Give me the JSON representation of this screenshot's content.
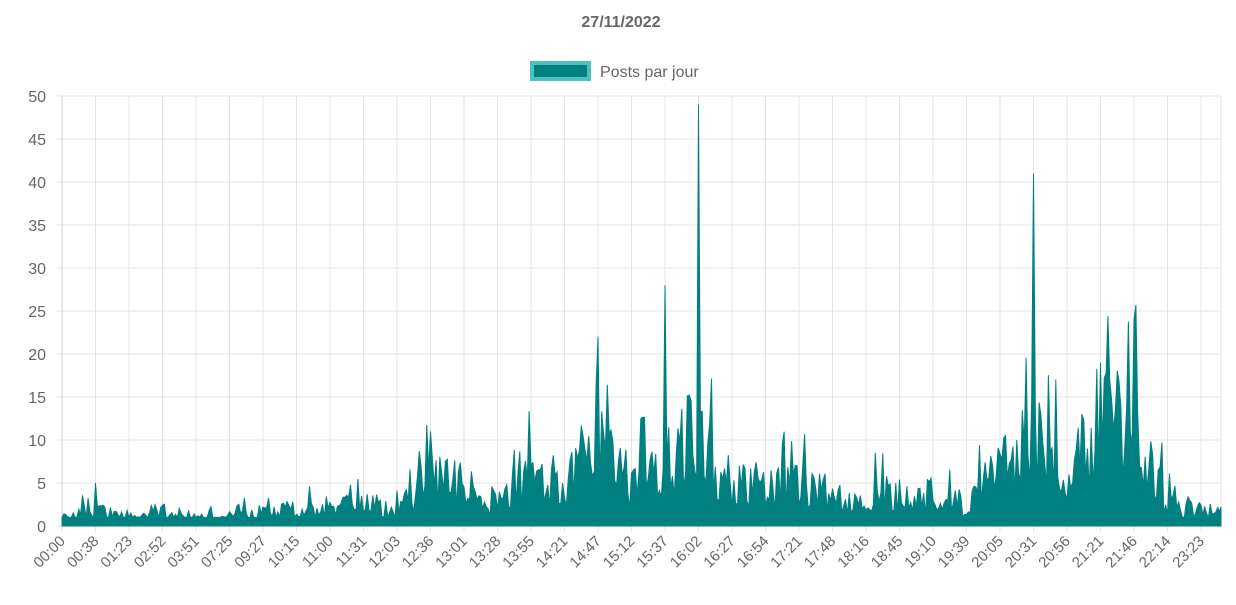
{
  "chart_data": {
    "type": "area",
    "title": "27/11/2022",
    "xlabel": "",
    "ylabel": "",
    "ylim": [
      0,
      50
    ],
    "y_ticks": [
      0,
      5,
      10,
      15,
      20,
      25,
      30,
      35,
      40,
      45,
      50
    ],
    "grid": true,
    "legend_position": "top",
    "x_tick_labels": [
      "00:00",
      "00:38",
      "01:23",
      "02:52",
      "03:51",
      "07:25",
      "09:27",
      "10:15",
      "11:00",
      "11:31",
      "12:03",
      "12:36",
      "13:01",
      "13:28",
      "13:55",
      "14:21",
      "14:47",
      "15:12",
      "15:37",
      "16:02",
      "16:27",
      "16:54",
      "17:21",
      "17:48",
      "18:16",
      "18:45",
      "19:10",
      "19:39",
      "20:05",
      "20:31",
      "20:56",
      "21:21",
      "21:46",
      "22:14",
      "23:23"
    ],
    "series": [
      {
        "name": "Posts par jour",
        "color": "#008080",
        "border_color": "#4dc0c0",
        "values_per_tick": [
          1,
          2,
          1,
          2,
          1,
          1,
          2,
          2,
          2,
          3,
          2,
          6,
          5,
          3,
          6,
          4,
          15,
          5,
          8,
          12,
          6,
          5,
          5,
          4,
          4,
          4,
          3,
          3,
          8,
          12,
          5,
          14,
          12,
          3,
          2
        ],
        "peaks": [
          {
            "x": "00:38",
            "y": 5
          },
          {
            "x": "12:36",
            "y": 11
          },
          {
            "x": "14:47",
            "y": 22
          },
          {
            "x": "15:37",
            "y": 28
          },
          {
            "x": "16:02",
            "y": 49
          },
          {
            "x": "20:31",
            "y": 41
          },
          {
            "x": "21:21",
            "y": 19
          },
          {
            "x": "21:46",
            "y": 24
          }
        ]
      }
    ]
  }
}
